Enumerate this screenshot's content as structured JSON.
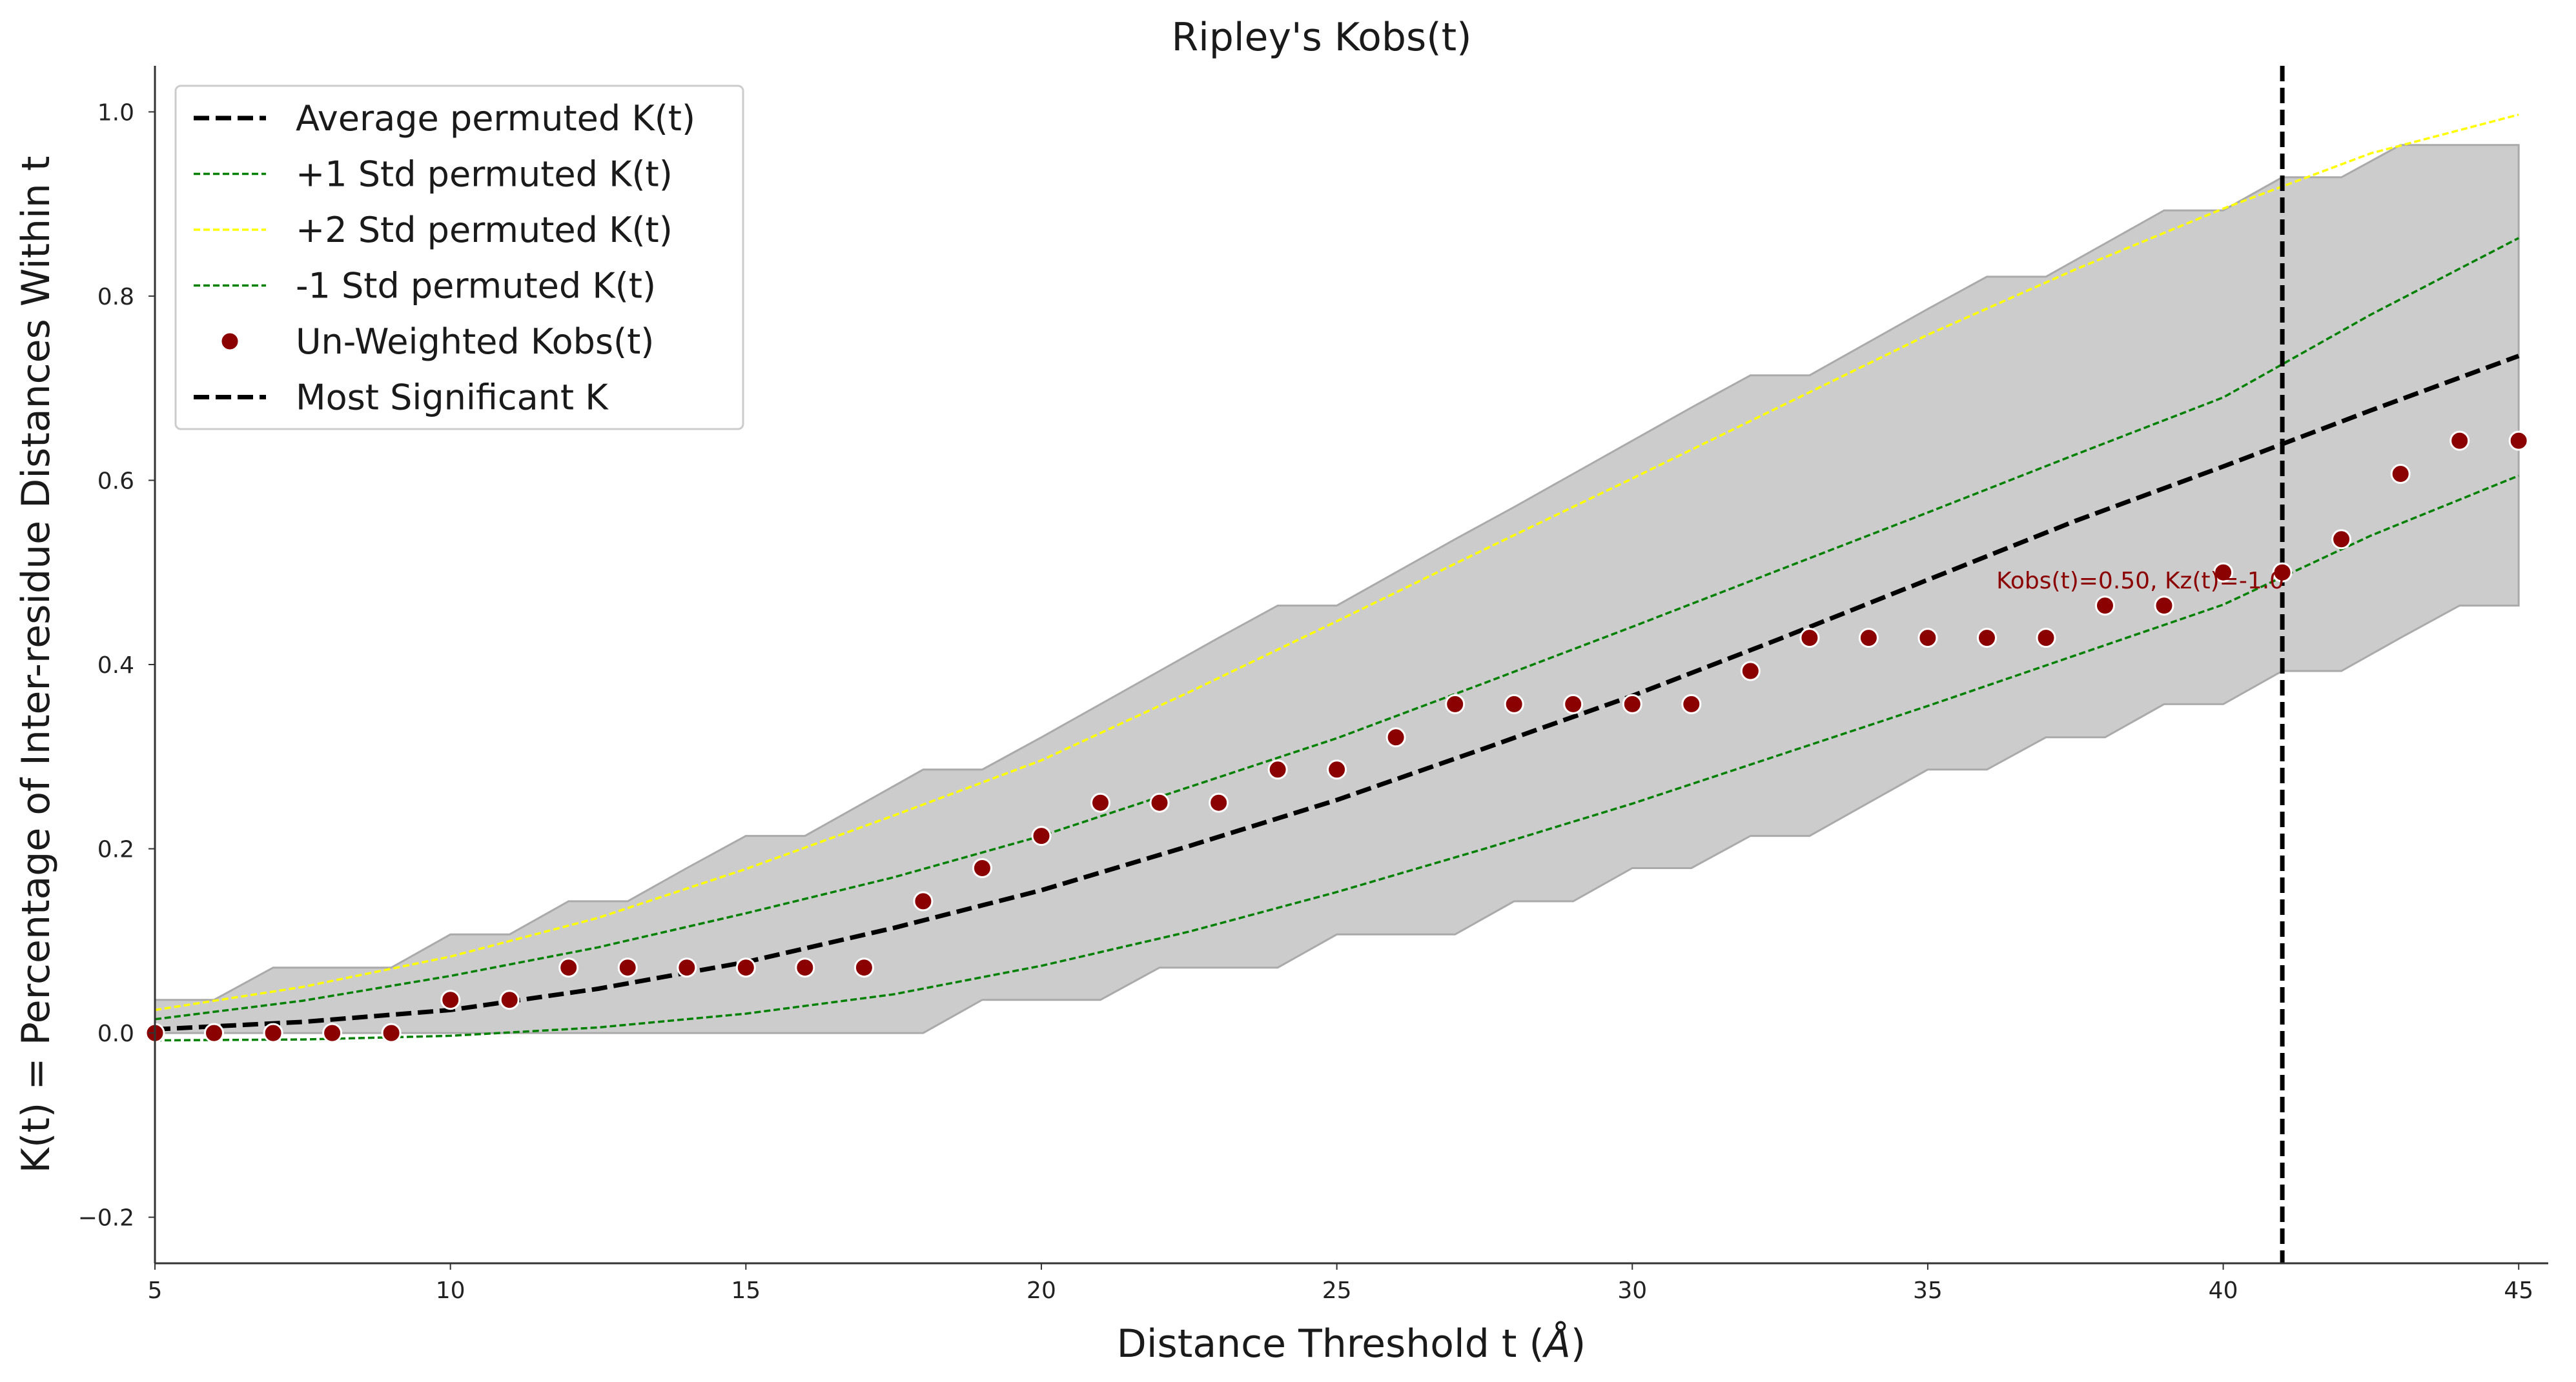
{
  "chart_data": {
    "type": "line",
    "title": "Ripley's Kobs(t)",
    "xlabel": "Distance Threshold t (",
    "xlabel_unit": "Å",
    "xlabel_close": ")",
    "ylabel": "K(t) = Percentage of Inter-residue Distances Within t",
    "xlim": [
      5,
      45.5
    ],
    "ylim": [
      -0.25,
      1.05
    ],
    "xticks": [
      5,
      10,
      15,
      20,
      25,
      30,
      35,
      40,
      45
    ],
    "xtick_labels": [
      "5",
      "10",
      "15",
      "20",
      "25",
      "30",
      "35",
      "40",
      "45"
    ],
    "yticks": [
      -0.2,
      0.0,
      0.2,
      0.4,
      0.6,
      0.8,
      1.0
    ],
    "ytick_labels": [
      "−0.2",
      "0.0",
      "0.2",
      "0.4",
      "0.6",
      "0.8",
      "1.0"
    ],
    "grid": false,
    "legend_position": "top-left",
    "legend": [
      {
        "label": "Average permuted K(t)",
        "style": "thick-dashed",
        "color": "#000000"
      },
      {
        "label": "+1 Std permuted K(t)",
        "style": "thin-dashed",
        "color": "#008000"
      },
      {
        "label": "+2 Std permuted K(t)",
        "style": "thin-dashed",
        "color": "#ffff00"
      },
      {
        "label": "-1 Std permuted K(t)",
        "style": "thin-dashed",
        "color": "#008000"
      },
      {
        "label": "Un-Weighted Kobs(t)",
        "style": "marker",
        "color": "#8b0000"
      },
      {
        "label": "Most Significant K",
        "style": "thick-dashed",
        "color": "#000000"
      }
    ],
    "envelope": {
      "color": "#cccccc",
      "edge_color": "#aaaaaa",
      "x": [
        5,
        6,
        7,
        8,
        9,
        10,
        11,
        12,
        13,
        14,
        15,
        16,
        17,
        18,
        19,
        20,
        21,
        22,
        23,
        24,
        25,
        26,
        27,
        28,
        29,
        30,
        31,
        32,
        33,
        34,
        35,
        36,
        37,
        38,
        39,
        40,
        41,
        42,
        43,
        44,
        45
      ],
      "upper": [
        0.036,
        0.036,
        0.071,
        0.071,
        0.071,
        0.107,
        0.107,
        0.143,
        0.143,
        0.179,
        0.214,
        0.214,
        0.25,
        0.286,
        0.286,
        0.321,
        0.357,
        0.393,
        0.429,
        0.464,
        0.464,
        0.5,
        0.536,
        0.571,
        0.607,
        0.643,
        0.679,
        0.714,
        0.714,
        0.75,
        0.786,
        0.821,
        0.821,
        0.857,
        0.893,
        0.893,
        0.929,
        0.929,
        0.964,
        0.964,
        0.964
      ],
      "lower": [
        0.0,
        0.0,
        0.0,
        0.0,
        0.0,
        0.0,
        0.0,
        0.0,
        0.0,
        0.0,
        0.0,
        0.0,
        0.0,
        0.0,
        0.036,
        0.036,
        0.036,
        0.071,
        0.071,
        0.071,
        0.107,
        0.107,
        0.107,
        0.143,
        0.143,
        0.179,
        0.179,
        0.214,
        0.214,
        0.25,
        0.286,
        0.286,
        0.321,
        0.321,
        0.357,
        0.357,
        0.393,
        0.393,
        0.429,
        0.464,
        0.464
      ]
    },
    "series": [
      {
        "name": "Average permuted K(t)",
        "color": "#000000",
        "style": "thick-dashed",
        "x": [
          5,
          7.5,
          10,
          12.5,
          15,
          17.5,
          20,
          22.5,
          25,
          27.5,
          30,
          32.5,
          35,
          37.5,
          40,
          42.5,
          45
        ],
        "values": [
          0.004,
          0.012,
          0.025,
          0.048,
          0.077,
          0.114,
          0.155,
          0.203,
          0.253,
          0.309,
          0.366,
          0.428,
          0.492,
          0.556,
          0.615,
          0.676,
          0.735
        ]
      },
      {
        "name": "+1 Std permuted K(t)",
        "color": "#008000",
        "style": "thin-dashed",
        "x": [
          5,
          7.5,
          10,
          12.5,
          15,
          17.5,
          20,
          22.5,
          25,
          27.5,
          30,
          32.5,
          35,
          37.5,
          40,
          42.5,
          45
        ],
        "values": [
          0.015,
          0.035,
          0.062,
          0.093,
          0.13,
          0.169,
          0.214,
          0.267,
          0.32,
          0.38,
          0.441,
          0.503,
          0.565,
          0.628,
          0.69,
          0.78,
          0.863
        ]
      },
      {
        "name": "+2 Std permuted K(t)",
        "color": "#ffff00",
        "style": "thin-dashed",
        "x": [
          5,
          7.5,
          10,
          12.5,
          15,
          17.5,
          20,
          22.5,
          25,
          27.5,
          30,
          32.5,
          35,
          37.5,
          40,
          42.5,
          45
        ],
        "values": [
          0.025,
          0.05,
          0.083,
          0.125,
          0.178,
          0.236,
          0.296,
          0.37,
          0.447,
          0.525,
          0.602,
          0.68,
          0.758,
          0.829,
          0.895,
          0.955,
          0.997
        ]
      },
      {
        "name": "-1 Std permuted K(t)",
        "color": "#008000",
        "style": "thin-dashed",
        "x": [
          5,
          7.5,
          10,
          12.5,
          15,
          17.5,
          20,
          22.5,
          25,
          27.5,
          30,
          32.5,
          35,
          37.5,
          40,
          42.5,
          45
        ],
        "values": [
          -0.008,
          -0.007,
          -0.003,
          0.006,
          0.021,
          0.042,
          0.073,
          0.11,
          0.153,
          0.2,
          0.249,
          0.302,
          0.355,
          0.41,
          0.465,
          0.54,
          0.605
        ]
      }
    ],
    "points": {
      "name": "Un-Weighted Kobs(t)",
      "color": "#8b0000",
      "x": [
        5,
        6,
        7,
        8,
        9,
        10,
        11,
        12,
        13,
        14,
        15,
        16,
        17,
        18,
        19,
        20,
        21,
        22,
        23,
        24,
        25,
        26,
        27,
        28,
        29,
        30,
        31,
        32,
        33,
        34,
        35,
        36,
        37,
        38,
        39,
        40,
        41,
        42,
        43,
        44,
        45
      ],
      "values": [
        0.0,
        0.0,
        0.0,
        0.0,
        0.0,
        0.036,
        0.036,
        0.071,
        0.071,
        0.071,
        0.071,
        0.071,
        0.071,
        0.143,
        0.179,
        0.214,
        0.25,
        0.25,
        0.25,
        0.286,
        0.286,
        0.321,
        0.357,
        0.357,
        0.357,
        0.357,
        0.357,
        0.393,
        0.429,
        0.429,
        0.429,
        0.429,
        0.429,
        0.464,
        0.464,
        0.5,
        0.5,
        0.536,
        0.607,
        0.643,
        0.643
      ]
    },
    "vline": {
      "name": "Most Significant K",
      "x": 41,
      "color": "#000000"
    },
    "annotation": {
      "text": "Kobs(t)=0.50, Kz(t)=-1.0",
      "x": 41,
      "y": 0.5
    }
  }
}
